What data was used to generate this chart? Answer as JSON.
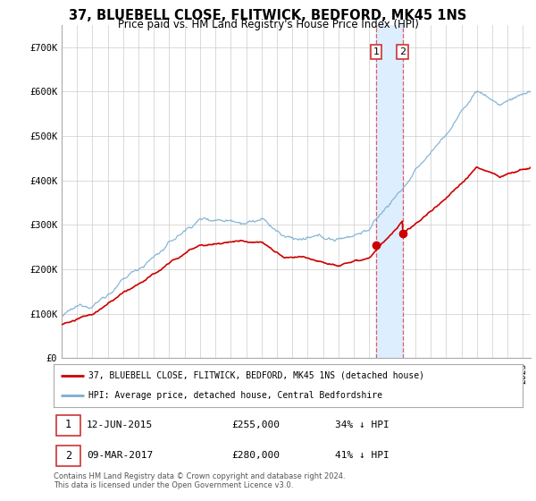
{
  "title": "37, BLUEBELL CLOSE, FLITWICK, BEDFORD, MK45 1NS",
  "subtitle": "Price paid vs. HM Land Registry's House Price Index (HPI)",
  "ylim": [
    0,
    750000
  ],
  "yticks": [
    0,
    100000,
    200000,
    300000,
    400000,
    500000,
    600000,
    700000
  ],
  "ytick_labels": [
    "£0",
    "£100K",
    "£200K",
    "£300K",
    "£400K",
    "£500K",
    "£600K",
    "£700K"
  ],
  "hpi_color": "#7bafd4",
  "price_color": "#cc0000",
  "highlight_color": "#ddeeff",
  "transaction1_x": 2015.44,
  "transaction1_y": 255000,
  "transaction2_x": 2017.18,
  "transaction2_y": 280000,
  "legend_label1": "37, BLUEBELL CLOSE, FLITWICK, BEDFORD, MK45 1NS (detached house)",
  "legend_label2": "HPI: Average price, detached house, Central Bedfordshire",
  "background_color": "#ffffff",
  "grid_color": "#cccccc",
  "xmin": 1995,
  "xmax": 2025.5,
  "footnote": "Contains HM Land Registry data © Crown copyright and database right 2024.\nThis data is licensed under the Open Government Licence v3.0."
}
